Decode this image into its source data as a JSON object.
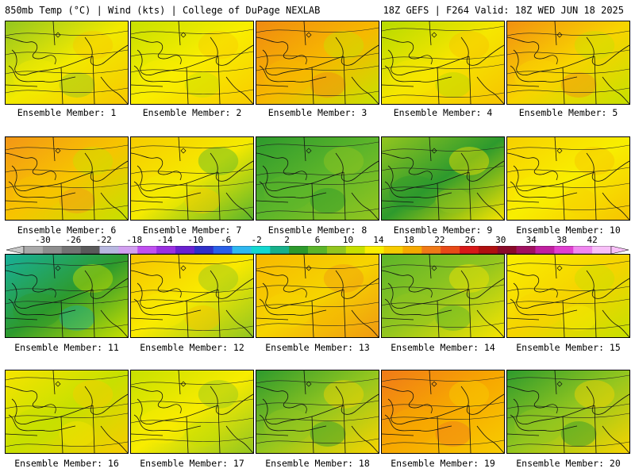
{
  "header": {
    "left": "850mb Temp (°C) | Wind (kts) | College of DuPage NEXLAB",
    "right": "18Z GEFS | F264 Valid: 18Z WED JUN 18 2025"
  },
  "members": [
    {
      "label": "Ensemble Member: 1",
      "palette": [
        "#93c61f",
        "#f2ea00",
        "#f6c800"
      ]
    },
    {
      "label": "Ensemble Member: 2",
      "palette": [
        "#c7e000",
        "#f9ee00",
        "#f7cc00"
      ]
    },
    {
      "label": "Ensemble Member: 3",
      "palette": [
        "#f08a10",
        "#f7b800",
        "#c7e000"
      ]
    },
    {
      "label": "Ensemble Member: 4",
      "palette": [
        "#b6da00",
        "#f6e600",
        "#f6c400"
      ]
    },
    {
      "label": "Ensemble Member: 5",
      "palette": [
        "#f29010",
        "#f8d400",
        "#c7e000"
      ]
    },
    {
      "label": "Ensemble Member: 6",
      "palette": [
        "#f39616",
        "#f7c400",
        "#c7e000"
      ]
    },
    {
      "label": "Ensemble Member: 7",
      "palette": [
        "#f7cc00",
        "#f5ea00",
        "#5cb52a"
      ]
    },
    {
      "label": "Ensemble Member: 8",
      "palette": [
        "#2d9a2d",
        "#5cb52a",
        "#93c61f"
      ]
    },
    {
      "label": "Ensemble Member: 9",
      "palette": [
        "#93c61f",
        "#2d9a2d",
        "#f6e400"
      ]
    },
    {
      "label": "Ensemble Member: 10",
      "palette": [
        "#f7d000",
        "#f8ee00",
        "#f6c400"
      ]
    },
    {
      "label": "Ensemble Member: 11",
      "palette": [
        "#18b09a",
        "#2d9a2d",
        "#c7e000"
      ]
    },
    {
      "label": "Ensemble Member: 12",
      "palette": [
        "#f6c400",
        "#f9ea00",
        "#93c61f"
      ]
    },
    {
      "label": "Ensemble Member: 13",
      "palette": [
        "#f7b800",
        "#f6d400",
        "#f09a10"
      ]
    },
    {
      "label": "Ensemble Member: 14",
      "palette": [
        "#5cb52a",
        "#93c61f",
        "#f6e400"
      ]
    },
    {
      "label": "Ensemble Member: 15",
      "palette": [
        "#f9ee00",
        "#f6d400",
        "#c7e000"
      ]
    },
    {
      "label": "Ensemble Member: 16",
      "palette": [
        "#f6e400",
        "#c7e000",
        "#f7cc00"
      ]
    },
    {
      "label": "Ensemble Member: 17",
      "palette": [
        "#c7e000",
        "#f8ec00",
        "#93c61f"
      ]
    },
    {
      "label": "Ensemble Member: 18",
      "palette": [
        "#2d9a2d",
        "#93c61f",
        "#f6d400"
      ]
    },
    {
      "label": "Ensemble Member: 19",
      "palette": [
        "#f07a18",
        "#f7a800",
        "#f7cc00"
      ]
    },
    {
      "label": "Ensemble Member: 20",
      "palette": [
        "#2d9a2d",
        "#93c61f",
        "#f6d400"
      ]
    }
  ],
  "colorbar": {
    "ticks": [
      "-30",
      "-26",
      "-22",
      "-18",
      "-14",
      "-10",
      "-6",
      "-2",
      "2",
      "6",
      "10",
      "14",
      "18",
      "22",
      "26",
      "30",
      "34",
      "38",
      "42"
    ],
    "colors": [
      "#a9a9a9",
      "#8e8e8e",
      "#737373",
      "#5a5a5a",
      "#b8b8e0",
      "#d2a0f0",
      "#c050f0",
      "#9a30e0",
      "#6a20d0",
      "#3030c8",
      "#2a60e8",
      "#30b8f0",
      "#14d8d0",
      "#18b08a",
      "#2d9a2d",
      "#5cb52a",
      "#93c61f",
      "#c7e000",
      "#f9ee00",
      "#f7cc00",
      "#f6aa00",
      "#f07a18",
      "#e84a18",
      "#d81818",
      "#b01010",
      "#8a0a2a",
      "#a01060",
      "#c020a0",
      "#e040d0",
      "#f088f0",
      "#f8c0f8"
    ]
  }
}
